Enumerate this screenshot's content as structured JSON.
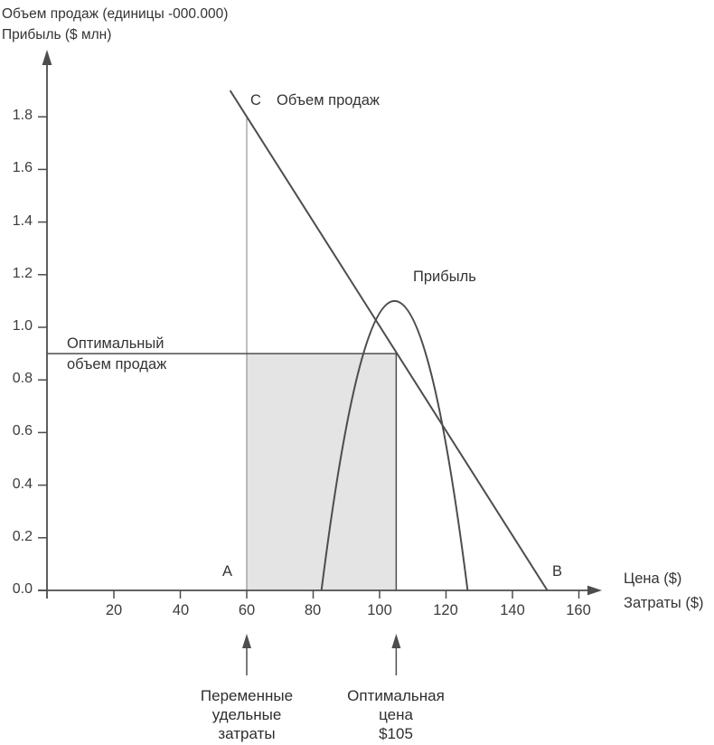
{
  "chart_data": {
    "type": "line",
    "title_lines": [
      "Объем продаж (единицы -000.000)",
      "Прибыль ($ млн)"
    ],
    "x_axis": {
      "label_lines": [
        "Цена ($)",
        "Затраты ($)"
      ],
      "ticks": [
        20,
        40,
        60,
        80,
        100,
        120,
        140,
        160
      ],
      "tick_labels": [
        "20",
        "40",
        "60",
        "80",
        "100",
        "120",
        "140",
        "160"
      ],
      "range": [
        0,
        167
      ]
    },
    "y_axis": {
      "ticks": [
        0.0,
        0.2,
        0.4,
        0.6,
        0.8,
        1.0,
        1.2,
        1.4,
        1.6,
        1.8
      ],
      "tick_labels": [
        "0.0",
        "0.2",
        "0.4",
        "0.6",
        "0.8",
        "1.0",
        "1.2",
        "1.4",
        "1.6",
        "1.8"
      ],
      "range": [
        0,
        2.05
      ],
      "grid": false
    },
    "series": [
      {
        "name": "Объем продаж",
        "type": "line",
        "points": [
          [
            55,
            1.9
          ],
          [
            150.5,
            0
          ]
        ],
        "comment": "straight demand line through C(60, 1.8), hits axis at B(~150, 0)"
      },
      {
        "name": "Прибыль",
        "type": "parabola",
        "zeros": [
          82.5,
          126.5
        ],
        "peak": [
          104.5,
          1.1
        ]
      }
    ],
    "reference": {
      "optimal_volume": 0.9,
      "optimal_volume_label": [
        "Оптимальный",
        "объем продаж"
      ],
      "variable_unit_cost": 60,
      "optimal_price": 105,
      "sales_volume_at_cost": 1.8,
      "shaded_region": {
        "x": [
          60,
          105
        ],
        "y": [
          0,
          0.9
        ]
      }
    },
    "annotations": {
      "label_c": "C",
      "label_a": "A",
      "label_b": "B",
      "demand_label": "Объем продаж",
      "profit_label": "Прибыль",
      "arrow1_lines": [
        "Переменные",
        "удельные",
        "затраты"
      ],
      "arrow2_lines": [
        "Оптимальная",
        "цена",
        "$105"
      ]
    },
    "colors": {
      "line": "#4d4d4d",
      "thin_line": "#808080",
      "shade": "#e4e4e4",
      "text": "#383838"
    }
  }
}
